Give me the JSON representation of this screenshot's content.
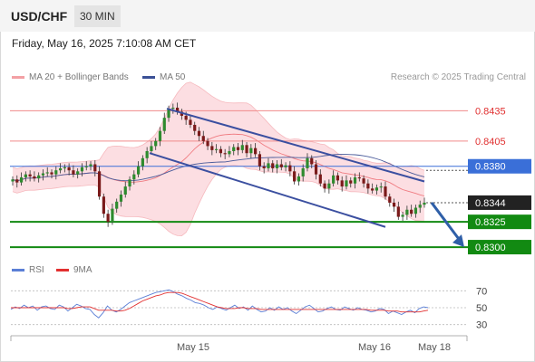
{
  "header": {
    "symbol": "USD/CHF",
    "timeframe": "30 MIN"
  },
  "datetime": "Friday, May 16, 2025 7:10:08 AM CET",
  "legend": {
    "ma_label": "MA 20 + Bollinger Bands",
    "ma50_label": "MA 50",
    "credit": "Research © 2025 Trading Central",
    "rsi_label": "RSI",
    "ma9_label": "9MA"
  },
  "colors": {
    "bollinger_fill": "#fbd3d8",
    "ma20": "#f07c82",
    "ma50": "#4a5b9a",
    "candle_up": "#2e8b2e",
    "candle_down": "#7a1a1a",
    "resistance": "#e03030",
    "pivot": "#3a6fd8",
    "support": "#128a12",
    "channel": "#3b4fa0",
    "rsi": "#5b7fd6",
    "rsi_ma": "#e23030"
  },
  "chart_data": [
    {
      "type": "candlestick",
      "title": "USD/CHF 30 MIN",
      "x_labels": [
        "May 15",
        "May 16",
        "May 18"
      ],
      "ylim": [
        0.8292,
        0.8455
      ],
      "last_price": "0.8344",
      "levels": [
        {
          "value": 0.8435,
          "label": "0.8435",
          "kind": "resistance"
        },
        {
          "value": 0.8405,
          "label": "0.8405",
          "kind": "resistance"
        },
        {
          "value": 0.838,
          "label": "0.8380",
          "kind": "pivot"
        },
        {
          "value": 0.8325,
          "label": "0.8325",
          "kind": "support"
        },
        {
          "value": 0.83,
          "label": "0.8300",
          "kind": "support"
        }
      ],
      "close": [
        0.8367,
        0.8364,
        0.8369,
        0.8372,
        0.837,
        0.8368,
        0.8371,
        0.8373,
        0.8374,
        0.8372,
        0.8376,
        0.8378,
        0.8379,
        0.8376,
        0.8372,
        0.8375,
        0.8379,
        0.838,
        0.8382,
        0.8375,
        0.835,
        0.8333,
        0.8325,
        0.8338,
        0.8345,
        0.8352,
        0.836,
        0.8367,
        0.8372,
        0.838,
        0.8388,
        0.8395,
        0.84,
        0.8405,
        0.8415,
        0.8428,
        0.8437,
        0.8438,
        0.8434,
        0.843,
        0.8426,
        0.8421,
        0.8415,
        0.841,
        0.8405,
        0.84,
        0.8396,
        0.8397,
        0.8393,
        0.8392,
        0.8395,
        0.8399,
        0.8396,
        0.8401,
        0.8393,
        0.8398,
        0.8392,
        0.838,
        0.8378,
        0.8383,
        0.8378,
        0.8382,
        0.8379,
        0.8381,
        0.8375,
        0.8365,
        0.837,
        0.8378,
        0.8388,
        0.8382,
        0.8372,
        0.8363,
        0.8358,
        0.8363,
        0.8371,
        0.8366,
        0.836,
        0.8366,
        0.8363,
        0.8369,
        0.8368,
        0.8363,
        0.8358,
        0.8356,
        0.8359,
        0.836,
        0.835,
        0.8344,
        0.834,
        0.833,
        0.8332,
        0.8337,
        0.8333,
        0.8339,
        0.8342,
        0.8344
      ],
      "rsi": [
        48,
        51,
        49,
        53,
        50,
        52,
        47,
        51,
        52,
        49,
        48,
        53,
        51,
        46,
        50,
        54,
        52,
        49,
        48,
        42,
        38,
        44,
        52,
        47,
        45,
        48,
        52,
        56,
        58,
        60,
        62,
        64,
        66,
        68,
        69,
        70,
        71,
        69,
        66,
        64,
        61,
        59,
        56,
        55,
        53,
        50,
        48,
        51,
        49,
        47,
        50,
        53,
        49,
        51,
        47,
        52,
        48,
        45,
        46,
        50,
        47,
        51,
        48,
        50,
        46,
        43,
        47,
        51,
        53,
        49,
        45,
        46,
        49,
        51,
        48,
        47,
        51,
        49,
        47,
        50,
        48,
        47,
        45,
        46,
        49,
        48,
        43,
        46,
        44,
        42,
        45,
        47,
        44,
        49,
        51,
        50
      ],
      "rsi_ma": [
        50,
        50,
        50,
        50,
        50,
        50,
        50,
        50,
        50,
        50,
        50,
        50,
        50,
        49,
        49,
        50,
        51,
        51,
        51,
        49,
        47,
        47,
        47,
        47,
        46,
        46,
        47,
        49,
        52,
        55,
        58,
        60,
        62,
        64,
        65,
        67,
        68,
        68,
        68,
        67,
        65,
        63,
        61,
        59,
        57,
        55,
        53,
        51,
        50,
        49,
        49,
        49,
        50,
        50,
        49,
        49,
        49,
        48,
        48,
        48,
        48,
        48,
        48,
        48,
        48,
        48,
        48,
        48,
        48,
        48,
        48,
        48,
        48,
        48,
        48,
        48,
        48,
        48,
        48,
        48,
        48,
        48,
        47,
        47,
        47,
        47,
        46,
        46,
        46,
        45,
        45,
        45,
        45,
        45,
        46,
        47
      ],
      "rsi_ticks": [
        70,
        50,
        30
      ]
    }
  ]
}
